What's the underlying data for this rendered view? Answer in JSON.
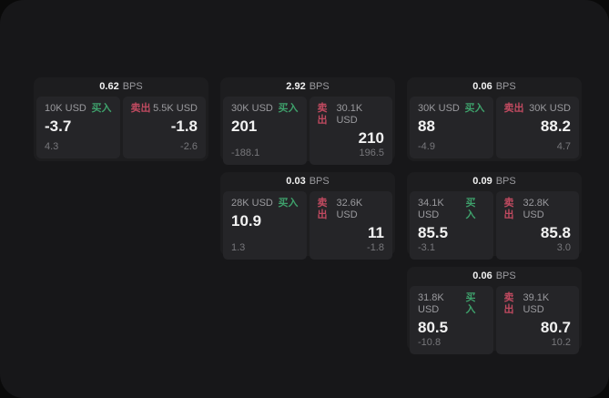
{
  "labels": {
    "buy": "买入",
    "sell": "卖出",
    "bps_unit": "BPS"
  },
  "colors": {
    "outer_bg": "#0a0a0a",
    "window_bg": "#171719",
    "card_bg": "#1d1d1f",
    "panel_bg": "#252528",
    "text_primary": "#f2f2f2",
    "text_secondary": "#9a9a9e",
    "text_tertiary": "#77777b",
    "buy_green": "#3ea06b",
    "sell_red": "#c04a60"
  },
  "cards": [
    {
      "bps": "0.62",
      "buy": {
        "amount": "10K USD",
        "price": "-3.7",
        "change": "4.3"
      },
      "sell": {
        "amount": "5.5K USD",
        "price": "-1.8",
        "change": "-2.6"
      }
    },
    {
      "bps": "2.92",
      "buy": {
        "amount": "30K USD",
        "price": "201",
        "change": "-188.1"
      },
      "sell": {
        "amount": "30.1K USD",
        "price": "210",
        "change": "196.5"
      }
    },
    {
      "bps": "0.06",
      "buy": {
        "amount": "30K USD",
        "price": "88",
        "change": "-4.9"
      },
      "sell": {
        "amount": "30K USD",
        "price": "88.2",
        "change": "4.7"
      }
    },
    {
      "bps": "0.03",
      "buy": {
        "amount": "28K USD",
        "price": "10.9",
        "change": "1.3"
      },
      "sell": {
        "amount": "32.6K USD",
        "price": "11",
        "change": "-1.8"
      }
    },
    {
      "bps": "0.09",
      "buy": {
        "amount": "34.1K USD",
        "price": "85.5",
        "change": "-3.1"
      },
      "sell": {
        "amount": "32.8K USD",
        "price": "85.8",
        "change": "3.0"
      }
    },
    {
      "bps": "0.06",
      "buy": {
        "amount": "31.8K USD",
        "price": "80.5",
        "change": "-10.8"
      },
      "sell": {
        "amount": "39.1K USD",
        "price": "80.7",
        "change": "10.2"
      }
    }
  ]
}
